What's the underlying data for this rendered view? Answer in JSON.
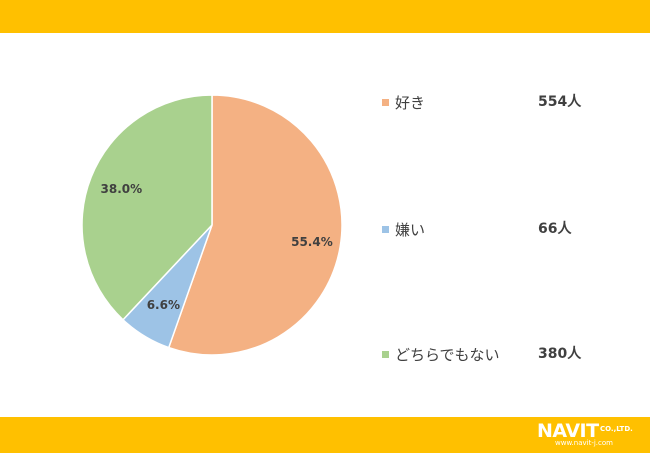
{
  "chart_data": {
    "type": "pie",
    "slices": [
      {
        "label": "好き",
        "value": 55.4,
        "value_label": "55.4%",
        "count_label": "554人",
        "color": "#f4b183"
      },
      {
        "label": "嫌い",
        "value": 6.6,
        "value_label": "6.6%",
        "count_label": "66人",
        "color": "#9dc3e6"
      },
      {
        "label": "どちらでもない",
        "value": 38.0,
        "value_label": "38.0%",
        "count_label": "380人",
        "color": "#a9d18e"
      }
    ],
    "legend_position": "right"
  },
  "colors": {
    "banner": "#ffc000",
    "text": "#404040"
  },
  "logo": {
    "wordmark": "NAVIT",
    "suffix": "CO.,LTD.",
    "url": "www.navit-j.com"
  }
}
